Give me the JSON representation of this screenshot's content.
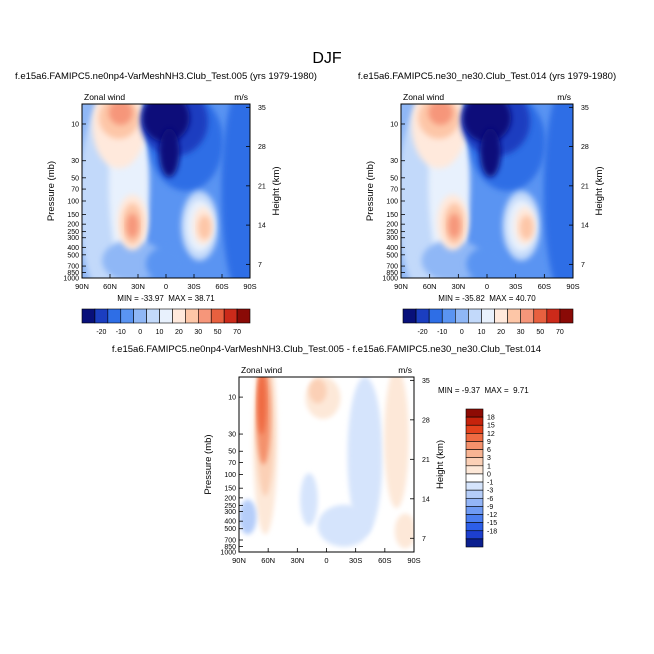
{
  "figure": {
    "title": "DJF"
  },
  "colors": {
    "panel_scale": [
      "#08107a",
      "#1b3ec0",
      "#2e6ee6",
      "#5a94f2",
      "#8fb7f6",
      "#c2d9fa",
      "#e8f1fd",
      "#ffe9dc",
      "#fdc6a7",
      "#f6967a",
      "#e8603f",
      "#cc2a1a",
      "#8a0a06"
    ],
    "diff_scale": [
      "#0b1f8f",
      "#1d3fcf",
      "#2c5ee8",
      "#4b7ef0",
      "#6f9bf4",
      "#93b5f7",
      "#b5cdf9",
      "#d5e4fc",
      "#ffffff",
      "#fde8d8",
      "#fbd0b6",
      "#f8b493",
      "#f4916c",
      "#ef6b43",
      "#e4421d",
      "#c6230c",
      "#8e0b04"
    ]
  },
  "chart_data": [
    {
      "type": "contour",
      "title": "f.e15a6.FAMIPC5.ne0np4-VarMeshNH3.Club_Test.005 (yrs 1979-1980)",
      "left_label": "Zonal wind",
      "right_label": "m/s",
      "ylabel": "Pressure (mb)",
      "ylabel_right": "Height (km)",
      "xticks": [
        "90N",
        "60N",
        "30N",
        "0",
        "30S",
        "60S",
        "90S"
      ],
      "yticks": [
        "10",
        "30",
        "50",
        "70",
        "100",
        "150",
        "200",
        "250",
        "300",
        "400",
        "500",
        "700",
        "850",
        "1000"
      ],
      "height_ticks": [
        "35",
        "28",
        "21",
        "14",
        "7"
      ],
      "stats": "MIN = -33.97  MAX = 38.71",
      "levels": [
        "-20",
        "-10",
        "0",
        "10",
        "20",
        "30",
        "50",
        "70"
      ],
      "min": -33.97,
      "max": 38.71
    },
    {
      "type": "contour",
      "title": "f.e15a6.FAMIPC5.ne30_ne30.Club_Test.014 (yrs 1979-1980)",
      "left_label": "Zonal wind",
      "right_label": "m/s",
      "ylabel": "Pressure (mb)",
      "ylabel_right": "Height (km)",
      "xticks": [
        "90N",
        "60N",
        "30N",
        "0",
        "30S",
        "60S",
        "90S"
      ],
      "yticks": [
        "10",
        "30",
        "50",
        "70",
        "100",
        "150",
        "200",
        "250",
        "300",
        "400",
        "500",
        "700",
        "850",
        "1000"
      ],
      "height_ticks": [
        "35",
        "28",
        "21",
        "14",
        "7"
      ],
      "stats": "MIN = -35.82  MAX = 40.70",
      "levels": [
        "-20",
        "-10",
        "0",
        "10",
        "20",
        "30",
        "50",
        "70"
      ],
      "min": -35.82,
      "max": 40.7
    },
    {
      "type": "contour",
      "title": "f.e15a6.FAMIPC5.ne0np4-VarMeshNH3.Club_Test.005 - f.e15a6.FAMIPC5.ne30_ne30.Club_Test.014",
      "left_label": "Zonal wind",
      "right_label": "m/s",
      "ylabel": "Pressure (mb)",
      "ylabel_right": "Height (km)",
      "xticks": [
        "90N",
        "60N",
        "30N",
        "0",
        "30S",
        "60S",
        "90S"
      ],
      "yticks": [
        "10",
        "30",
        "50",
        "70",
        "100",
        "150",
        "200",
        "250",
        "300",
        "400",
        "500",
        "700",
        "850",
        "1000"
      ],
      "height_ticks": [
        "35",
        "28",
        "21",
        "14",
        "7"
      ],
      "stats": "MIN = -9.37  MAX =  9.71",
      "levels": [
        "18",
        "15",
        "12",
        "9",
        "6",
        "3",
        "1",
        "0",
        "-1",
        "-3",
        "-6",
        "-9",
        "-12",
        "-15",
        "-18"
      ],
      "min": -9.37,
      "max": 9.71
    }
  ]
}
